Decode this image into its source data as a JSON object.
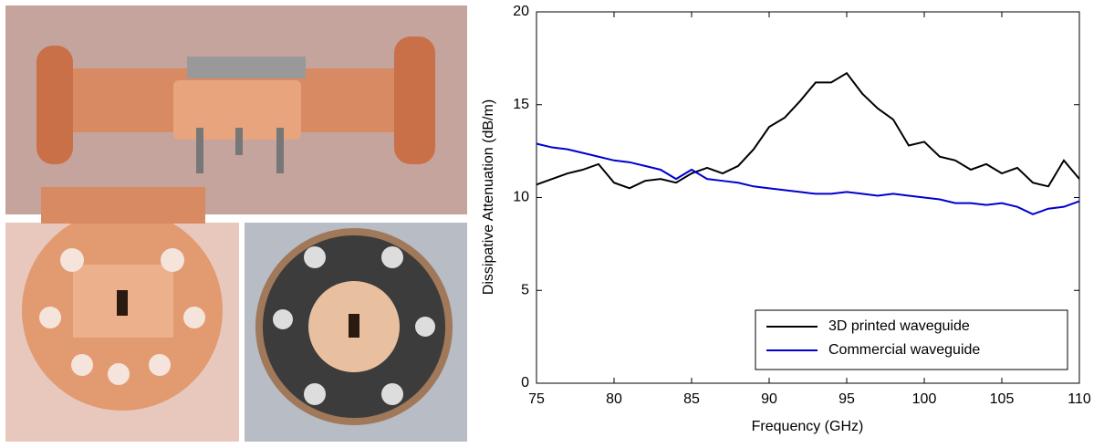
{
  "chart_data": {
    "type": "line",
    "xlabel": "Frequency (GHz)",
    "ylabel": "Dissipative Attenuation (dB/m)",
    "x": [
      75,
      76,
      77,
      78,
      79,
      80,
      81,
      82,
      83,
      84,
      85,
      86,
      87,
      88,
      89,
      90,
      91,
      92,
      93,
      94,
      95,
      96,
      97,
      98,
      99,
      100,
      101,
      102,
      103,
      104,
      105,
      106,
      107,
      108,
      109,
      110
    ],
    "series": [
      {
        "name": "3D printed waveguide",
        "color": "#000000",
        "values": [
          10.7,
          11.0,
          11.3,
          11.5,
          11.8,
          10.8,
          10.5,
          10.9,
          11.0,
          10.8,
          11.3,
          11.6,
          11.3,
          11.7,
          12.6,
          13.8,
          14.3,
          15.2,
          16.2,
          16.2,
          16.7,
          15.6,
          14.8,
          14.2,
          12.8,
          13.0,
          12.2,
          12.0,
          11.5,
          11.8,
          11.3,
          11.6,
          10.8,
          10.6,
          12.0,
          11.0
        ]
      },
      {
        "name": "Commercial waveguide",
        "color": "#0000d0",
        "values": [
          12.9,
          12.7,
          12.6,
          12.4,
          12.2,
          12.0,
          11.9,
          11.7,
          11.5,
          11.0,
          11.5,
          11.0,
          10.9,
          10.8,
          10.6,
          10.5,
          10.4,
          10.3,
          10.2,
          10.2,
          10.3,
          10.2,
          10.1,
          10.2,
          10.1,
          10.0,
          9.9,
          9.7,
          9.7,
          9.6,
          9.7,
          9.5,
          9.1,
          9.4,
          9.5,
          9.8
        ]
      }
    ],
    "xlim": [
      75,
      110
    ],
    "xticks": [
      75,
      80,
      85,
      90,
      95,
      100,
      105,
      110
    ],
    "ylim": [
      0,
      20
    ],
    "yticks": [
      0,
      5,
      10,
      15,
      20
    ],
    "grid": false,
    "legend": "lower right"
  }
}
